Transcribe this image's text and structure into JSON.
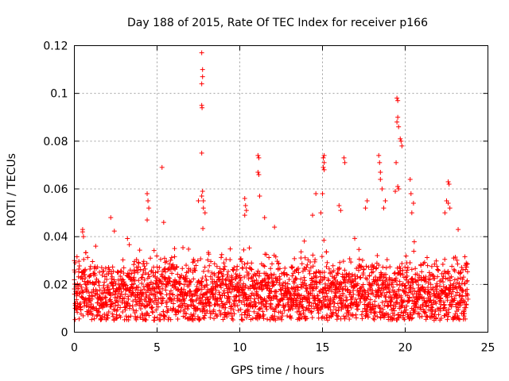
{
  "chart_data": {
    "type": "scatter",
    "title": "Day 188 of 2015, Rate Of TEC Index for receiver p166",
    "xlabel": "GPS time / hours",
    "ylabel": "ROTI / TECUs",
    "xlim": [
      0,
      25
    ],
    "ylim": [
      0,
      0.12
    ],
    "xticks": [
      0,
      5,
      10,
      15,
      20,
      25
    ],
    "yticks": [
      0,
      0.02,
      0.04,
      0.06,
      0.08,
      0.1,
      0.12
    ],
    "xtick_labels": [
      "0",
      "5",
      "10",
      "15",
      "20",
      "25"
    ],
    "ytick_labels": [
      "0",
      "0.02",
      "0.04",
      "0.06",
      "0.08",
      "0.1",
      "0.12"
    ],
    "grid": true,
    "marker": "+",
    "color": "#ff0000",
    "series": [
      {
        "name": "ROTI",
        "x_range_hours": [
          0,
          23.8
        ],
        "typical_band": [
          0.005,
          0.03
        ],
        "baseline_median": 0.016,
        "points": [
          {
            "x": 0.0,
            "y": 0.03
          },
          {
            "x": 0.0,
            "y": 0.022
          },
          {
            "x": 0.05,
            "y": 0.012
          },
          {
            "x": 0.05,
            "y": 0.01
          },
          {
            "x": 0.5,
            "y": 0.043
          },
          {
            "x": 0.5,
            "y": 0.042
          },
          {
            "x": 0.55,
            "y": 0.04
          },
          {
            "x": 2.2,
            "y": 0.048
          },
          {
            "x": 4.4,
            "y": 0.058
          },
          {
            "x": 4.45,
            "y": 0.055
          },
          {
            "x": 4.5,
            "y": 0.052
          },
          {
            "x": 4.4,
            "y": 0.047
          },
          {
            "x": 5.3,
            "y": 0.069
          },
          {
            "x": 5.4,
            "y": 0.046
          },
          {
            "x": 7.7,
            "y": 0.117
          },
          {
            "x": 7.75,
            "y": 0.11
          },
          {
            "x": 7.75,
            "y": 0.107
          },
          {
            "x": 7.7,
            "y": 0.104
          },
          {
            "x": 7.7,
            "y": 0.095
          },
          {
            "x": 7.72,
            "y": 0.094
          },
          {
            "x": 7.7,
            "y": 0.075
          },
          {
            "x": 7.75,
            "y": 0.059
          },
          {
            "x": 7.7,
            "y": 0.057
          },
          {
            "x": 7.8,
            "y": 0.055
          },
          {
            "x": 7.5,
            "y": 0.055
          },
          {
            "x": 7.8,
            "y": 0.052
          },
          {
            "x": 7.9,
            "y": 0.05
          },
          {
            "x": 10.3,
            "y": 0.056
          },
          {
            "x": 10.35,
            "y": 0.053
          },
          {
            "x": 10.4,
            "y": 0.051
          },
          {
            "x": 10.3,
            "y": 0.049
          },
          {
            "x": 11.1,
            "y": 0.074
          },
          {
            "x": 11.15,
            "y": 0.073
          },
          {
            "x": 11.1,
            "y": 0.067
          },
          {
            "x": 11.15,
            "y": 0.066
          },
          {
            "x": 11.2,
            "y": 0.057
          },
          {
            "x": 11.5,
            "y": 0.048
          },
          {
            "x": 12.1,
            "y": 0.044
          },
          {
            "x": 14.6,
            "y": 0.058
          },
          {
            "x": 14.9,
            "y": 0.05
          },
          {
            "x": 14.4,
            "y": 0.049
          },
          {
            "x": 15.1,
            "y": 0.074
          },
          {
            "x": 15.05,
            "y": 0.073
          },
          {
            "x": 15.1,
            "y": 0.071
          },
          {
            "x": 15.05,
            "y": 0.069
          },
          {
            "x": 15.1,
            "y": 0.068
          },
          {
            "x": 15.0,
            "y": 0.058
          },
          {
            "x": 16.3,
            "y": 0.073
          },
          {
            "x": 16.35,
            "y": 0.071
          },
          {
            "x": 16.0,
            "y": 0.053
          },
          {
            "x": 16.1,
            "y": 0.051
          },
          {
            "x": 17.7,
            "y": 0.055
          },
          {
            "x": 17.6,
            "y": 0.052
          },
          {
            "x": 18.4,
            "y": 0.074
          },
          {
            "x": 18.45,
            "y": 0.071
          },
          {
            "x": 18.5,
            "y": 0.067
          },
          {
            "x": 18.5,
            "y": 0.064
          },
          {
            "x": 18.6,
            "y": 0.06
          },
          {
            "x": 18.8,
            "y": 0.055
          },
          {
            "x": 18.7,
            "y": 0.052
          },
          {
            "x": 19.5,
            "y": 0.098
          },
          {
            "x": 19.55,
            "y": 0.097
          },
          {
            "x": 19.55,
            "y": 0.09
          },
          {
            "x": 19.5,
            "y": 0.088
          },
          {
            "x": 19.6,
            "y": 0.086
          },
          {
            "x": 19.7,
            "y": 0.081
          },
          {
            "x": 19.75,
            "y": 0.08
          },
          {
            "x": 19.8,
            "y": 0.078
          },
          {
            "x": 19.45,
            "y": 0.071
          },
          {
            "x": 19.55,
            "y": 0.061
          },
          {
            "x": 19.6,
            "y": 0.06
          },
          {
            "x": 19.4,
            "y": 0.059
          },
          {
            "x": 20.3,
            "y": 0.064
          },
          {
            "x": 20.35,
            "y": 0.058
          },
          {
            "x": 20.5,
            "y": 0.054
          },
          {
            "x": 20.4,
            "y": 0.05
          },
          {
            "x": 22.6,
            "y": 0.063
          },
          {
            "x": 22.65,
            "y": 0.062
          },
          {
            "x": 22.5,
            "y": 0.055
          },
          {
            "x": 22.6,
            "y": 0.054
          },
          {
            "x": 22.7,
            "y": 0.052
          },
          {
            "x": 22.4,
            "y": 0.05
          },
          {
            "x": 23.2,
            "y": 0.043
          }
        ]
      }
    ]
  }
}
